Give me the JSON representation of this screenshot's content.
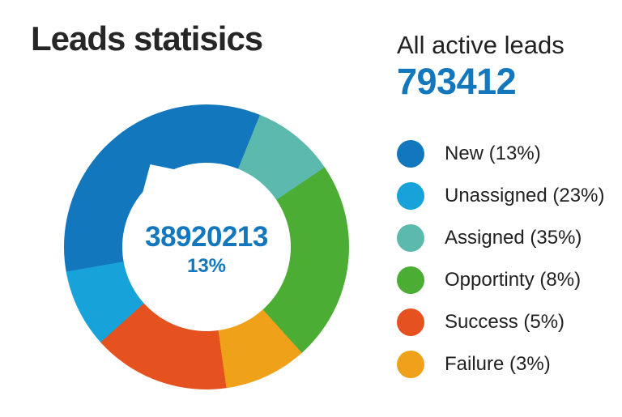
{
  "page": {
    "title": "Leads statisics"
  },
  "summary": {
    "heading": "All active leads",
    "count": "793412"
  },
  "colors": {
    "accent_blue": "#1377bd",
    "title_text": "#262626",
    "body_text": "#212121",
    "background": "#ffffff"
  },
  "chart_data": {
    "type": "donut",
    "title": "Leads statisics",
    "legend_position": "right",
    "center_label": {
      "value": "38920213",
      "percent": "13%"
    },
    "rotation_from_deg": 260,
    "segments": [
      {
        "label": "New",
        "percent": 13,
        "color": "#1377be",
        "legend_text": "New (13%)",
        "visual_sweep_deg": 122
      },
      {
        "label": "Unassigned",
        "percent": 23,
        "color": "#17a3da",
        "legend_text": "Unassigned (23%)",
        "visual_sweep_deg": 32
      },
      {
        "label": "Assigned",
        "percent": 35,
        "color": "#5cb9ae",
        "legend_text": "Assigned (35%)",
        "visual_sweep_deg": 34
      },
      {
        "label": "Opportinty",
        "percent": 8,
        "color": "#4cad35",
        "legend_text": "Opportinty (8%)",
        "visual_sweep_deg": 82
      },
      {
        "label": "Success",
        "percent": 5,
        "color": "#e5511f",
        "legend_text": "Success (5%)",
        "visual_sweep_deg": 56
      },
      {
        "label": "Failure",
        "percent": 3,
        "color": "#f0a11a",
        "legend_text": "Failure (3%)",
        "visual_sweep_deg": 34
      }
    ],
    "ring_order": [
      "New",
      "Assigned",
      "Opportinty",
      "Failure",
      "Success",
      "Unassigned"
    ]
  }
}
